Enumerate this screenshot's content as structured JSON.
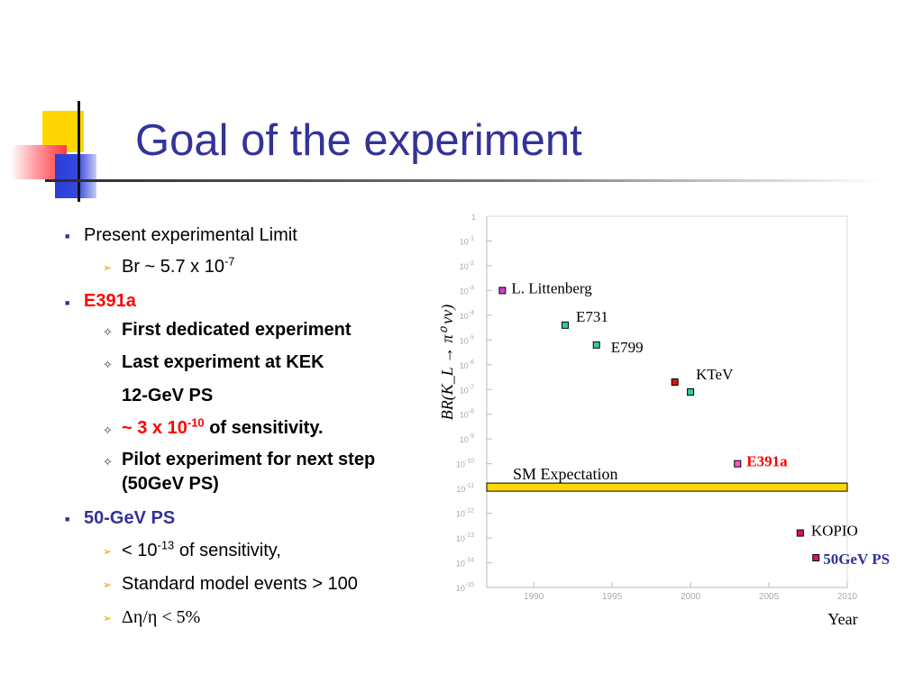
{
  "slide": {
    "title": "Goal of the experiment"
  },
  "bullets": {
    "limit_heading": "Present experimental Limit",
    "limit_value_base": "Br ~ 5.7 x 10",
    "limit_value_exp": "-7",
    "e391a_heading": "E391a",
    "e391a_items": [
      "First dedicated experiment",
      "Last experiment at KEK",
      "12-GeV PS"
    ],
    "sensitivity_prefix": "~ ",
    "sensitivity_value_base": "3 x 10",
    "sensitivity_value_exp": "-10",
    "sensitivity_suffix": " of sensitivity.",
    "pilot_line1": "Pilot experiment for next step",
    "pilot_line2": "(50GeV PS)",
    "ps50_heading": "50-GeV PS",
    "ps50_sens_base": "< 10",
    "ps50_sens_exp": "-13",
    "ps50_sens_suffix": "  of sensitivity,",
    "ps50_events": "Standard model events > 100",
    "ps50_resolution": "Δη/η < 5%"
  },
  "chart_data": {
    "type": "scatter",
    "ylabel": "BR(K_L → π⁰ νν)",
    "xlabel": "Year",
    "xlim": [
      1987,
      2010
    ],
    "ylim_log10": [
      -15,
      0
    ],
    "x_ticks": [
      "1990",
      "1995",
      "2000",
      "2005",
      "2010"
    ],
    "y_tick_exponents": [
      -1,
      -2,
      -3,
      -4,
      -5,
      -6,
      -7,
      -8,
      -9,
      -10,
      -11,
      -12,
      -13,
      -14,
      -15
    ],
    "y_tick_base": "10",
    "y_top_tick": "1",
    "sm_expectation": {
      "label": "SM Expectation",
      "log10_value": -11,
      "color": "#ffd700"
    },
    "points": [
      {
        "label": "L. Littenberg",
        "year": 1988.0,
        "log10_br": -3.0,
        "color": "#cc44cc",
        "label_color": "#000000",
        "bold": false
      },
      {
        "label": "E731",
        "year": 1992.0,
        "log10_br": -4.4,
        "color": "#33cc99",
        "label_color": "#000000",
        "bold": false
      },
      {
        "label": "E799",
        "year": 1994.0,
        "log10_br": -5.2,
        "color": "#33cc99",
        "label_color": "#000000",
        "bold": false
      },
      {
        "label": "",
        "year": 1999.0,
        "log10_br": -6.7,
        "color": "#dd1111",
        "label_color": "#000000",
        "bold": false
      },
      {
        "label": "KTeV",
        "year": 2000.0,
        "log10_br": -7.1,
        "color": "#33cc99",
        "label_color": "#000000",
        "bold": false
      },
      {
        "label": "E391a",
        "year": 2003.0,
        "log10_br": -10.0,
        "color": "#ff55cc",
        "label_color": "#ff0000",
        "bold": true
      },
      {
        "label": "KOPIO",
        "year": 2007.0,
        "log10_br": -12.8,
        "color": "#dd1166",
        "label_color": "#000000",
        "bold": false
      },
      {
        "label": "50GeV PS",
        "year": 2008.0,
        "log10_br": -13.8,
        "color": "#dd1166",
        "label_color": "#333399",
        "bold": true
      }
    ]
  }
}
